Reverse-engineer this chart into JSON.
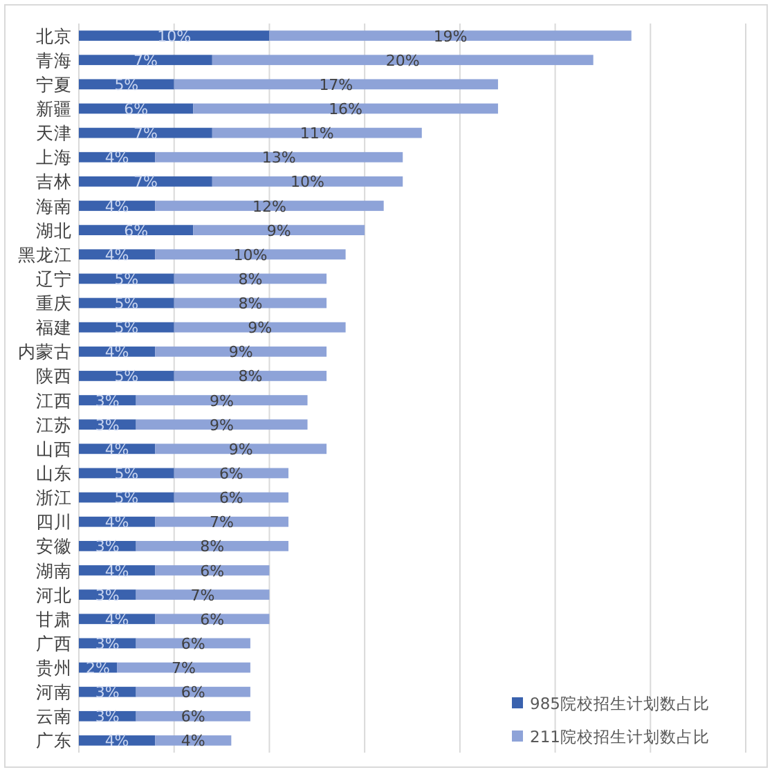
{
  "chart_data": {
    "type": "bar",
    "orientation": "horizontal",
    "stacked": true,
    "categories": [
      "北京",
      "青海",
      "宁夏",
      "新疆",
      "天津",
      "上海",
      "吉林",
      "海南",
      "湖北",
      "黑龙江",
      "辽宁",
      "重庆",
      "福建",
      "内蒙古",
      "陕西",
      "江西",
      "江苏",
      "山西",
      "山东",
      "浙江",
      "四川",
      "安徽",
      "湖南",
      "河北",
      "甘肃",
      "广西",
      "贵州",
      "河南",
      "云南",
      "广东"
    ],
    "series": [
      {
        "name": "985院校招生计划数占比",
        "color": "#3a62ae",
        "values": [
          10,
          7,
          5,
          6,
          7,
          4,
          7,
          4,
          6,
          4,
          5,
          5,
          5,
          4,
          5,
          3,
          3,
          4,
          5,
          5,
          4,
          3,
          4,
          3,
          4,
          3,
          2,
          3,
          3,
          4
        ],
        "value_labels": [
          "10%",
          "7%",
          "5%",
          "6%",
          "7%",
          "4%",
          "7%",
          "4%",
          "6%",
          "4%",
          "5%",
          "5%",
          "5%",
          "4%",
          "5%",
          "3%",
          "3%",
          "4%",
          "5%",
          "5%",
          "4%",
          "3%",
          "4%",
          "3%",
          "4%",
          "3%",
          "2%",
          "3%",
          "3%",
          "4%"
        ]
      },
      {
        "name": "211院校招生计划数占比",
        "color": "#8ea3d8",
        "values": [
          19,
          20,
          17,
          16,
          11,
          13,
          10,
          12,
          9,
          10,
          8,
          8,
          9,
          9,
          8,
          9,
          9,
          9,
          6,
          6,
          7,
          8,
          6,
          7,
          6,
          6,
          7,
          6,
          6,
          4
        ],
        "value_labels": [
          "19%",
          "20%",
          "17%",
          "16%",
          "11%",
          "13%",
          "10%",
          "12%",
          "9%",
          "10%",
          "8%",
          "8%",
          "9%",
          "9%",
          "8%",
          "9%",
          "9%",
          "9%",
          "6%",
          "6%",
          "7%",
          "8%",
          "6%",
          "7%",
          "6%",
          "6%",
          "7%",
          "6%",
          "6%",
          "4%"
        ]
      }
    ],
    "xlim": [
      0,
      35
    ],
    "xticks": [
      {
        "value": 0,
        "label": null
      },
      {
        "value": 5,
        "label": null
      },
      {
        "value": 10,
        "label": null
      },
      {
        "value": 15,
        "label": null
      },
      {
        "value": 20,
        "label": null
      },
      {
        "value": 25,
        "label": null
      },
      {
        "value": 30,
        "label": null
      },
      {
        "value": 35,
        "label": null
      }
    ],
    "tick_labels": "y",
    "grid": "x",
    "legend": "bottom right"
  }
}
